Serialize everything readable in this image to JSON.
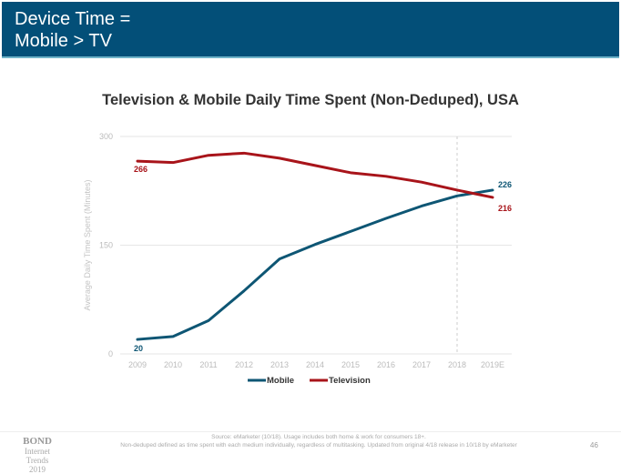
{
  "header": {
    "title_line1": "Device Time =",
    "title_line2": "Mobile > TV"
  },
  "chart_data": {
    "type": "line",
    "title": "Television & Mobile Daily Time Spent (Non-Deduped), USA",
    "xlabel": "",
    "ylabel": "Average Daily Time Spent (Minutes)",
    "x": [
      "2009",
      "2010",
      "2011",
      "2012",
      "2013",
      "2014",
      "2015",
      "2016",
      "2017",
      "2018",
      "2019E"
    ],
    "ylim": [
      0,
      300
    ],
    "yticks": [
      0,
      150,
      300
    ],
    "grid": true,
    "legend_position": "bottom",
    "reference_line_x": "2018",
    "series": [
      {
        "name": "Mobile",
        "color": "#0e5674",
        "values": [
          20,
          24,
          46,
          87,
          131,
          151,
          169,
          187,
          204,
          218,
          226
        ],
        "labels": {
          "first": "20",
          "last": "226"
        }
      },
      {
        "name": "Television",
        "color": "#a8141a",
        "values": [
          266,
          264,
          274,
          277,
          270,
          260,
          250,
          245,
          237,
          226,
          216
        ],
        "labels": {
          "first": "266",
          "last": "216"
        }
      }
    ]
  },
  "footer": {
    "logo_line1": "BOND",
    "logo_line2": "Internet Trends",
    "logo_line3": "2019",
    "source_line1": "Source: eMarketer (10/18). Usage includes both home & work for consumers 18+.",
    "source_line2": "Non-deduped defined as time spent with each medium individually, regardless of multitasking. Updated from original 4/18 release in 10/18 by eMarketer",
    "page_number": "46"
  }
}
